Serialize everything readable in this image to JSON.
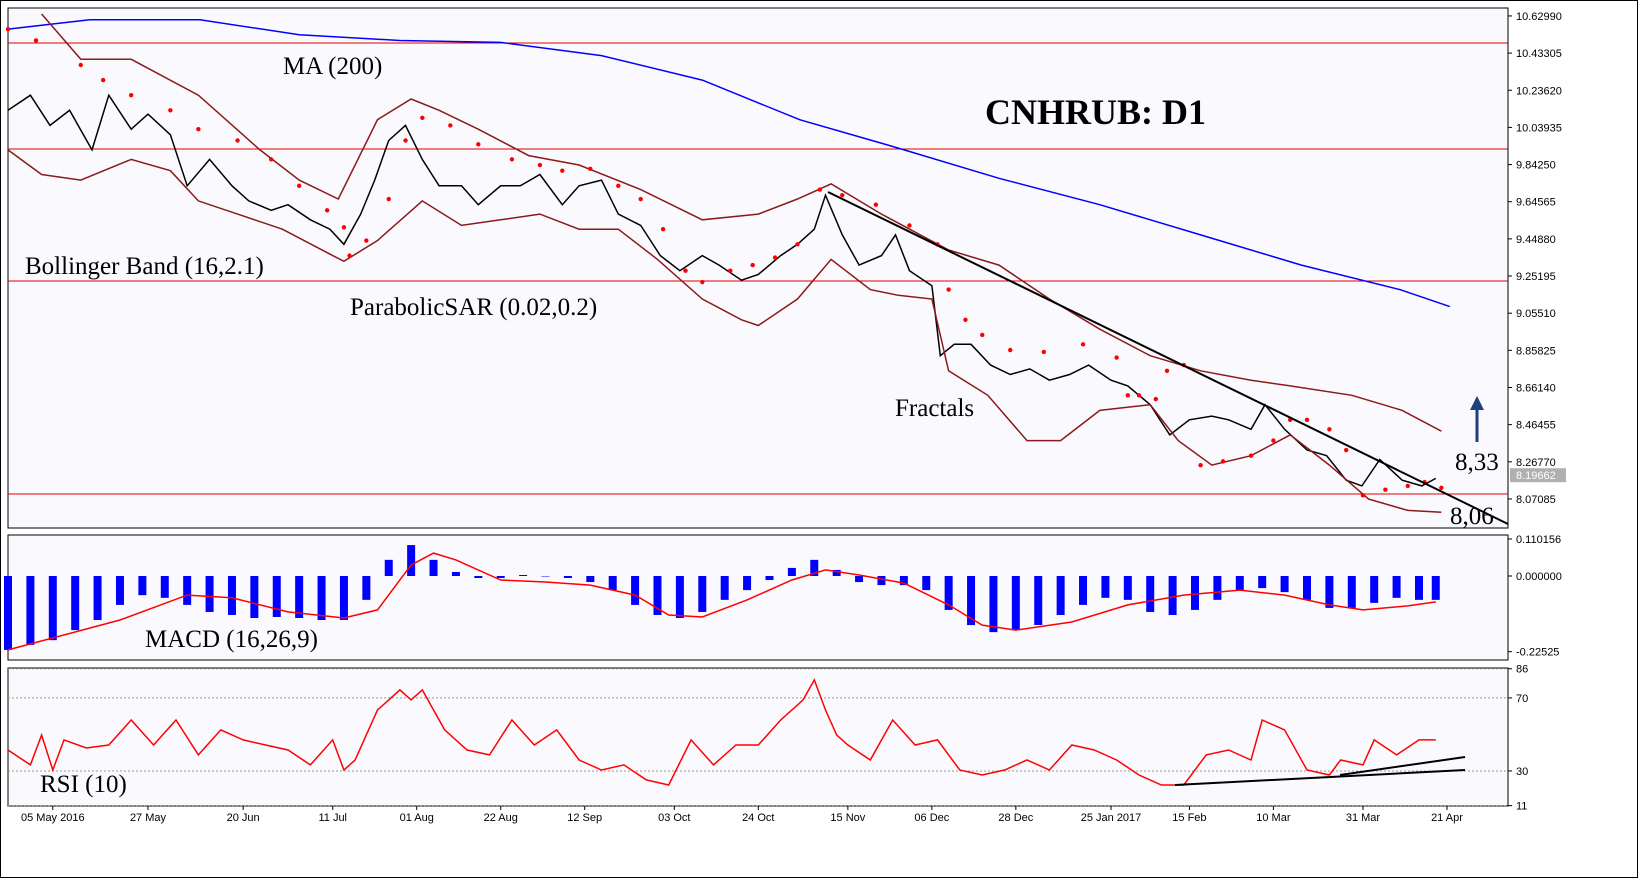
{
  "chart_data": [
    {
      "type": "line",
      "title": "CNHRUB: D1",
      "xlim": [
        0,
        267.9
      ],
      "ylim": [
        7.917,
        10.672
      ],
      "yticks": [
        {
          "value": 10.6299,
          "label": "10.62990"
        },
        10.43305,
        {
          "value": 10.2362,
          "label": "10.23620"
        },
        10.03935,
        {
          "value": 9.8425,
          "label": "9.84250"
        },
        9.64565,
        {
          "value": 9.4488,
          "label": "9.44880"
        },
        9.25195,
        {
          "value": 9.0551,
          "label": "9.05510"
        },
        8.85825,
        {
          "value": 8.6614,
          "label": "8.66140"
        },
        8.46455,
        {
          "value": 8.2677,
          "label": "8.26770"
        },
        8.07085
      ],
      "grid": false,
      "last_price": 8.19662,
      "annotations": [
        "Fractals",
        "8,33",
        "8,06"
      ],
      "series": [
        {
          "color": "#000000",
          "style": "line",
          "x": [
            0,
            4,
            7.5,
            11,
            15,
            18,
            22,
            25,
            29,
            32,
            36,
            40,
            43,
            47,
            50,
            54,
            57.5,
            60,
            63,
            65.5,
            68,
            71,
            74,
            77,
            81,
            84,
            88,
            91.5,
            95,
            99,
            102,
            106,
            109,
            113,
            116.5,
            120,
            124,
            127,
            131,
            134,
            138,
            141,
            144,
            146,
            149,
            152,
            156,
            158.5,
            161,
            165,
            166.5,
            169,
            172,
            175.5,
            179,
            182.5,
            186,
            189.6,
            193,
            197,
            200,
            204,
            207.5,
            211,
            215,
            218,
            222,
            224.5,
            228,
            232,
            235.5,
            239,
            241.8,
            245,
            249,
            252.5,
            255
          ],
          "values": [
            10.13,
            10.21,
            10.05,
            10.13,
            9.92,
            10.21,
            10.03,
            10.11,
            10.0,
            9.73,
            9.87,
            9.73,
            9.65,
            9.6,
            9.63,
            9.55,
            9.5,
            9.42,
            9.58,
            9.76,
            9.97,
            10.05,
            9.87,
            9.73,
            9.73,
            9.63,
            9.73,
            9.73,
            9.79,
            9.63,
            9.73,
            9.76,
            9.58,
            9.52,
            9.36,
            9.28,
            9.36,
            9.31,
            9.23,
            9.26,
            9.36,
            9.42,
            9.5,
            9.68,
            9.47,
            9.31,
            9.36,
            9.47,
            9.28,
            9.2,
            8.83,
            8.89,
            8.89,
            8.78,
            8.73,
            8.76,
            8.7,
            8.73,
            8.78,
            8.7,
            8.67,
            8.57,
            8.41,
            8.49,
            8.51,
            8.49,
            8.44,
            8.57,
            8.44,
            8.33,
            8.3,
            8.17,
            8.14,
            8.28,
            8.17,
            8.14,
            8.18
          ]
        },
        {
          "name": "MA (200)",
          "color": "#0000ff",
          "style": "line",
          "x": [
            0,
            14.6,
            34.3,
            52,
            70,
            88,
            106,
            124,
            141.4,
            159,
            177,
            195,
            213,
            231,
            248.6,
            257.5
          ],
          "values": [
            10.56,
            10.61,
            10.61,
            10.53,
            10.5,
            10.49,
            10.42,
            10.29,
            10.08,
            9.93,
            9.77,
            9.63,
            9.47,
            9.31,
            9.18,
            9.09
          ]
        },
        {
          "name": "Bollinger Band (16,2.1)",
          "color": "#8b1a1a",
          "style": "line",
          "x": [
            6,
            13,
            22,
            34,
            45,
            52,
            59,
            66,
            72,
            77,
            84,
            93,
            102,
            113,
            124,
            134,
            141,
            147,
            156,
            168,
            177,
            186,
            195,
            204,
            213,
            222,
            229,
            240,
            249,
            256
          ],
          "values": [
            10.64,
            10.4,
            10.4,
            10.21,
            9.92,
            9.76,
            9.66,
            10.08,
            10.19,
            10.13,
            10.03,
            9.89,
            9.84,
            9.71,
            9.55,
            9.58,
            9.66,
            9.74,
            9.58,
            9.39,
            9.31,
            9.13,
            8.97,
            8.83,
            8.75,
            8.7,
            8.67,
            8.62,
            8.54,
            8.43
          ]
        },
        {
          "color": "#8b1a1a",
          "style": "line",
          "x": [
            0,
            6,
            13,
            22,
            29,
            34,
            41,
            49,
            58,
            60,
            66,
            74,
            81,
            88,
            95,
            102,
            109,
            116,
            124,
            131,
            134,
            141,
            147,
            154,
            159,
            165,
            168,
            175,
            182,
            188,
            195,
            204,
            209,
            215,
            222,
            229,
            236,
            243,
            250,
            256
          ],
          "values": [
            9.92,
            9.79,
            9.76,
            9.87,
            9.81,
            9.65,
            9.58,
            9.5,
            9.36,
            9.33,
            9.44,
            9.65,
            9.52,
            9.55,
            9.58,
            9.5,
            9.5,
            9.34,
            9.13,
            9.02,
            8.99,
            9.13,
            9.34,
            9.18,
            9.15,
            9.13,
            8.75,
            8.62,
            8.38,
            8.38,
            8.54,
            8.57,
            8.38,
            8.25,
            8.3,
            8.41,
            8.25,
            8.07,
            8.01,
            8.0
          ]
        },
        {
          "name": "ParabolicSAR (0.02,0.2)",
          "color": "#ff0000",
          "style": "dots",
          "x": [
            0,
            5,
            13,
            17,
            22,
            29,
            34,
            41,
            47,
            52,
            57,
            60,
            61,
            64,
            68,
            71,
            74,
            79,
            84,
            90,
            95,
            99,
            104,
            109,
            113,
            117,
            121,
            124,
            129,
            133,
            137,
            141,
            145,
            149,
            155,
            161,
            166,
            168,
            171,
            174,
            179,
            185,
            192,
            198,
            200,
            202,
            205,
            207,
            210,
            213,
            217,
            222,
            226,
            229,
            232,
            236,
            239,
            242,
            246,
            250,
            253,
            256
          ],
          "values": [
            10.56,
            10.5,
            10.37,
            10.29,
            10.21,
            10.13,
            10.03,
            9.97,
            9.87,
            9.73,
            9.6,
            9.51,
            9.36,
            9.44,
            9.66,
            9.97,
            10.09,
            10.05,
            9.95,
            9.87,
            9.84,
            9.81,
            9.82,
            9.73,
            9.66,
            9.5,
            9.28,
            9.22,
            9.28,
            9.31,
            9.35,
            9.42,
            9.71,
            9.68,
            9.63,
            9.52,
            9.42,
            9.18,
            9.02,
            8.94,
            8.86,
            8.85,
            8.89,
            8.82,
            8.62,
            8.62,
            8.6,
            8.75,
            8.78,
            8.25,
            8.27,
            8.3,
            8.38,
            8.49,
            8.49,
            8.44,
            8.33,
            8.09,
            8.12,
            8.14,
            8.16,
            8.13
          ]
        }
      ]
    },
    {
      "type": "macd",
      "xlim": [
        0,
        267.9
      ],
      "ylim": [
        -0.25,
        0.122
      ],
      "yticks": [
        0.110156,
        {
          "value": 0,
          "label": "0.000000"
        },
        -0.22525
      ],
      "grid": false,
      "series": [
        {
          "name": "MACD (16,26,9)",
          "color": "#0000ff",
          "style": "bar",
          "x": [
            0,
            4,
            8,
            12,
            16,
            20,
            24,
            28,
            32,
            36,
            40,
            44,
            48,
            52,
            56,
            60,
            64,
            68,
            72,
            76,
            80,
            84,
            88,
            92,
            96,
            100,
            104,
            108,
            112,
            116,
            120,
            124,
            128,
            132,
            136,
            140,
            144,
            148,
            152,
            156,
            160,
            164,
            168,
            172,
            176,
            180,
            184,
            188,
            192,
            196,
            200,
            204,
            208,
            212,
            216,
            220,
            224,
            228,
            232,
            236,
            240,
            244,
            248,
            252,
            255
          ],
          "values": [
            -0.22,
            -0.205,
            -0.191,
            -0.161,
            -0.131,
            -0.086,
            -0.057,
            -0.065,
            -0.086,
            -0.107,
            -0.116,
            -0.125,
            -0.122,
            -0.125,
            -0.131,
            -0.131,
            -0.071,
            0.048,
            0.092,
            0.048,
            0.012,
            -0.006,
            -0.006,
            0.003,
            0,
            -0.006,
            -0.018,
            -0.042,
            -0.086,
            -0.116,
            -0.125,
            -0.107,
            -0.071,
            -0.042,
            -0.012,
            0.024,
            0.048,
            0.018,
            -0.018,
            -0.027,
            -0.027,
            -0.042,
            -0.101,
            -0.146,
            -0.167,
            -0.161,
            -0.146,
            -0.116,
            -0.086,
            -0.065,
            -0.071,
            -0.107,
            -0.116,
            -0.101,
            -0.071,
            -0.042,
            -0.036,
            -0.048,
            -0.071,
            -0.095,
            -0.095,
            -0.08,
            -0.065,
            -0.071,
            -0.071
          ]
        },
        {
          "color": "#ff0000",
          "style": "line",
          "x": [
            0,
            20,
            32,
            40,
            50,
            60,
            66,
            72,
            76,
            80,
            88,
            96,
            104,
            112,
            118,
            124,
            132,
            140,
            146,
            152,
            160,
            168,
            174,
            180,
            190,
            200,
            210,
            220,
            228,
            236,
            242,
            250,
            255
          ],
          "values": [
            -0.22,
            -0.131,
            -0.057,
            -0.065,
            -0.107,
            -0.125,
            -0.101,
            0.033,
            0.068,
            0.048,
            -0.012,
            -0.018,
            -0.027,
            -0.057,
            -0.116,
            -0.122,
            -0.071,
            -0.012,
            0.018,
            0.003,
            -0.021,
            -0.086,
            -0.146,
            -0.161,
            -0.137,
            -0.086,
            -0.057,
            -0.042,
            -0.057,
            -0.086,
            -0.101,
            -0.089,
            -0.077
          ]
        }
      ]
    },
    {
      "type": "line",
      "xlim": [
        0,
        267.9
      ],
      "ylim": [
        10.8,
        86.4
      ],
      "yticks": [
        86,
        70,
        30,
        11
      ],
      "grid": true,
      "xticks": [
        {
          "value": 8,
          "label": "05 May 2016"
        },
        {
          "value": 25,
          "label": "27 May"
        },
        {
          "value": 42,
          "label": "20 Jun"
        },
        {
          "value": 58,
          "label": "11 Jul"
        },
        {
          "value": 73,
          "label": "01 Aug"
        },
        {
          "value": 88,
          "label": "22 Aug"
        },
        {
          "value": 103,
          "label": "12 Sep"
        },
        {
          "value": 119,
          "label": "03 Oct"
        },
        {
          "value": 134,
          "label": "24 Oct"
        },
        {
          "value": 150,
          "label": "15 Nov"
        },
        {
          "value": 165,
          "label": "06 Dec"
        },
        {
          "value": 180,
          "label": "28 Dec"
        },
        {
          "value": 197,
          "label": "25 Jan 2017"
        },
        {
          "value": 211,
          "label": "15 Feb"
        },
        {
          "value": 226,
          "label": "10 Mar"
        },
        {
          "value": 242,
          "label": "31 Mar"
        },
        {
          "value": 257,
          "label": "21 Apr"
        }
      ],
      "series": [
        {
          "name": "RSI (10)",
          "color": "#ff0000",
          "style": "line",
          "x": [
            0,
            4,
            6,
            8,
            10,
            14,
            18,
            22,
            26,
            30,
            34,
            38,
            42,
            46,
            50,
            54,
            58,
            60,
            62,
            66,
            70,
            72,
            74,
            78,
            82,
            86,
            90,
            94,
            98,
            102,
            106,
            110,
            114,
            118,
            122,
            126,
            130,
            134,
            138,
            142,
            144,
            146,
            148,
            150,
            154,
            158,
            162,
            166,
            170,
            174,
            178,
            182,
            186,
            190,
            194,
            198,
            202,
            206,
            210,
            214,
            218,
            222,
            224,
            228,
            232,
            236,
            238,
            242,
            244,
            248,
            252,
            255
          ],
          "values": [
            41.5,
            33.3,
            49.7,
            30.5,
            47.0,
            42.6,
            44.2,
            57.9,
            44.2,
            57.9,
            38.8,
            52.5,
            47.0,
            44.2,
            41.5,
            33.3,
            47.0,
            30.5,
            36.0,
            63.4,
            74.4,
            68.9,
            74.4,
            52.5,
            41.5,
            38.8,
            57.9,
            44.2,
            52.5,
            36.0,
            30.5,
            33.3,
            25.1,
            22.3,
            47.0,
            33.3,
            44.2,
            44.2,
            57.9,
            68.9,
            79.9,
            63.4,
            49.7,
            44.2,
            36.0,
            57.9,
            44.2,
            47.0,
            30.5,
            27.8,
            30.5,
            36.0,
            30.5,
            44.2,
            41.5,
            36.0,
            27.8,
            22.3,
            22.3,
            38.8,
            41.5,
            36.0,
            57.9,
            52.5,
            30.5,
            27.8,
            36.0,
            33.3,
            47.0,
            38.8,
            47.0,
            47.0
          ]
        }
      ]
    }
  ]
}
